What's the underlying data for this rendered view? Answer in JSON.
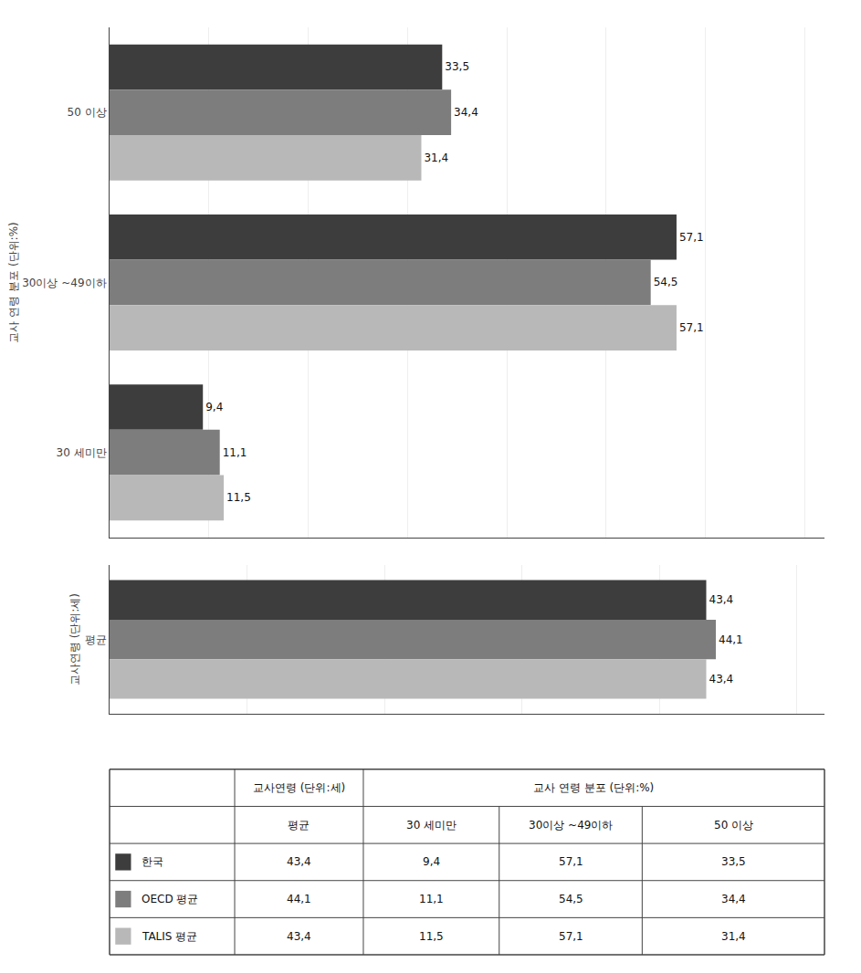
{
  "chart_data": [
    {
      "type": "bar",
      "orientation": "horizontal",
      "ylabel": "교사 연령 분포 (단위:%)",
      "categories": [
        "50 이상",
        "30이상 ~49이하",
        "30 세미만"
      ],
      "series": [
        {
          "color": "#3d3d3d",
          "values": [
            33.5,
            57.1,
            9.4
          ],
          "value_labels": [
            "33,5",
            "57,1",
            "9,4"
          ]
        },
        {
          "color": "#7d7d7d",
          "values": [
            34.4,
            54.5,
            11.1
          ],
          "value_labels": [
            "34,4",
            "54,5",
            "11,1"
          ]
        },
        {
          "color": "#b8b8b8",
          "values": [
            31.4,
            57.1,
            11.5
          ],
          "value_labels": [
            "31,4",
            "57,1",
            "11,5"
          ]
        }
      ],
      "xlim": [
        0,
        72
      ],
      "xticks": [
        0,
        10,
        20,
        30,
        40,
        50,
        60,
        70
      ],
      "grid": true,
      "tick_labels": "y",
      "data_labels": true
    },
    {
      "type": "bar",
      "orientation": "horizontal",
      "ylabel": "교사연령 (단위:세)",
      "categories": [
        "평균"
      ],
      "series": [
        {
          "color": "#3d3d3d",
          "values": [
            43.4
          ],
          "value_labels": [
            "43,4"
          ]
        },
        {
          "color": "#7d7d7d",
          "values": [
            44.1
          ],
          "value_labels": [
            "44,1"
          ]
        },
        {
          "color": "#b8b8b8",
          "values": [
            43.4
          ],
          "value_labels": [
            "43,4"
          ]
        }
      ],
      "xlim": [
        0,
        52
      ],
      "xticks": [
        0,
        10,
        20,
        30,
        40,
        50
      ],
      "grid": true,
      "tick_labels": "y",
      "data_labels": true
    },
    {
      "type": "table",
      "column_groups": [
        {
          "name": "교사연령 (단위:세)",
          "columns": [
            "평균"
          ]
        },
        {
          "name": "교사 연령 분포 (단위:%)",
          "columns": [
            "30 세미만",
            "30이상 ~49이하",
            "50 이상"
          ]
        }
      ],
      "rows": [
        {
          "name": "한국",
          "color": "#3d3d3d",
          "values": [
            43.4,
            9.4,
            57.1,
            33.5
          ],
          "value_labels": [
            "43,4",
            "9,4",
            "57,1",
            "33,5"
          ]
        },
        {
          "name": "OECD 평균",
          "color": "#7d7d7d",
          "values": [
            44.1,
            11.1,
            54.5,
            34.4
          ],
          "value_labels": [
            "44,1",
            "11,1",
            "54,5",
            "34,4"
          ]
        },
        {
          "name": "TALIS 평균",
          "color": "#b8b8b8",
          "values": [
            43.4,
            11.5,
            57.1,
            31.4
          ],
          "value_labels": [
            "43,4",
            "11,5",
            "57,1",
            "31,4"
          ]
        }
      ]
    }
  ]
}
